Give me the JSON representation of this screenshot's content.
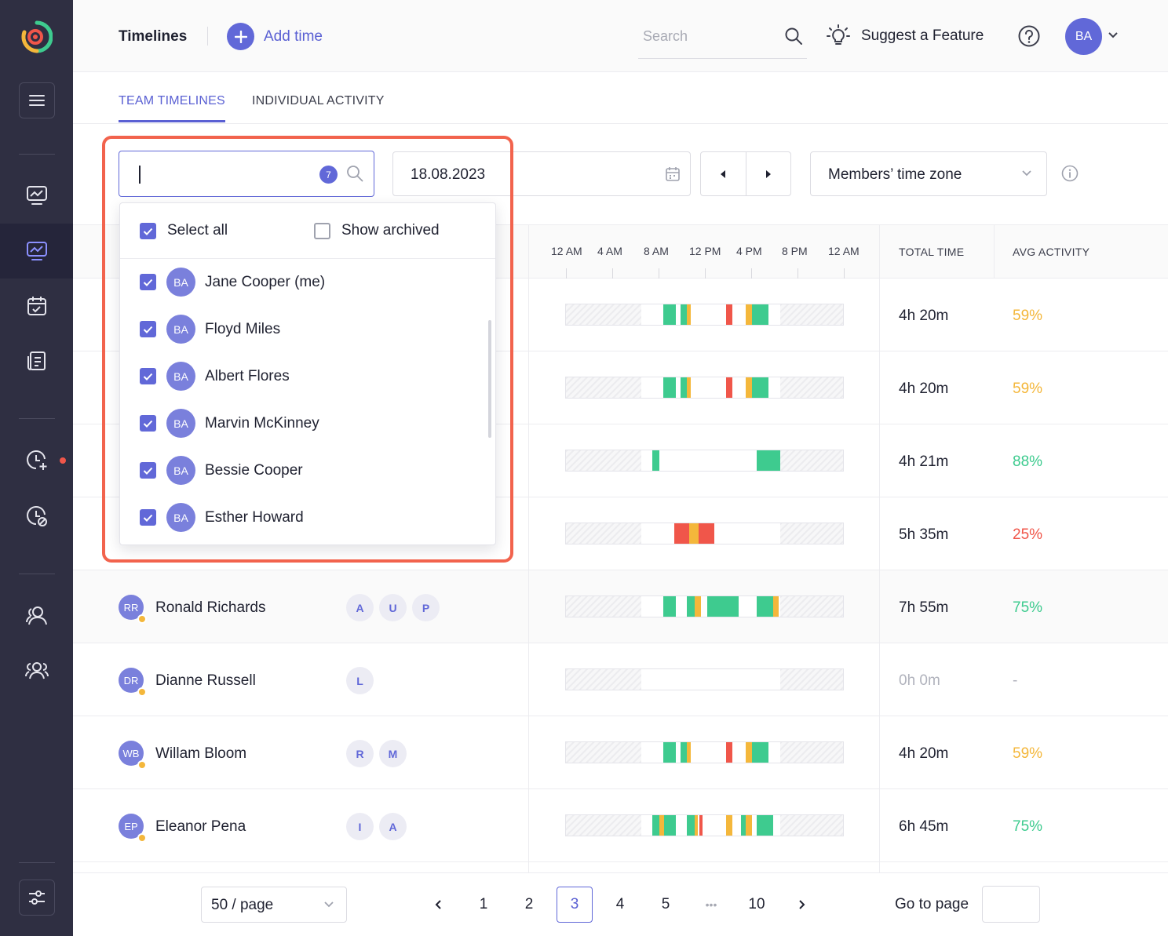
{
  "header": {
    "title": "Timelines",
    "add_time": "Add time",
    "search_placeholder": "Search",
    "suggest": "Suggest a Feature",
    "user_initials": "BA"
  },
  "tabs": [
    {
      "label": "TEAM TIMELINES",
      "active": true
    },
    {
      "label": "INDIVIDUAL ACTIVITY",
      "active": false
    }
  ],
  "filters": {
    "member_count": "7",
    "date": "18.08.2023",
    "timezone": "Members’ time zone"
  },
  "dropdown": {
    "select_all": "Select all",
    "show_archived": "Show archived",
    "members": [
      {
        "initials": "BA",
        "name": "Jane Cooper (me)",
        "checked": true
      },
      {
        "initials": "BA",
        "name": "Floyd Miles",
        "checked": true
      },
      {
        "initials": "BA",
        "name": "Albert Flores",
        "checked": true
      },
      {
        "initials": "BA",
        "name": "Marvin McKinney",
        "checked": true
      },
      {
        "initials": "BA",
        "name": "Bessie Cooper",
        "checked": true
      },
      {
        "initials": "BA",
        "name": "Esther Howard",
        "checked": true
      }
    ]
  },
  "table": {
    "hours": [
      "12 AM",
      "4 AM",
      "8 AM",
      "12 PM",
      "4 PM",
      "8 PM",
      "12 AM"
    ],
    "total_header": "TOTAL TIME",
    "activity_header": "AVG ACTIVITY",
    "rows": [
      {
        "initials": "",
        "name": "",
        "chips": [],
        "total": "4h 20m",
        "activity": "59%"
      },
      {
        "initials": "",
        "name": "",
        "chips": [],
        "total": "4h 20m",
        "activity": "59%"
      },
      {
        "initials": "",
        "name": "",
        "chips": [],
        "total": "4h 21m",
        "activity": "88%"
      },
      {
        "initials": "",
        "name": "",
        "chips": [],
        "total": "5h 35m",
        "activity": "25%"
      },
      {
        "initials": "RR",
        "name": "Ronald Richards",
        "chips": [
          "A",
          "U",
          "P"
        ],
        "total": "7h 55m",
        "activity": "75%"
      },
      {
        "initials": "DR",
        "name": "Dianne Russell",
        "chips": [
          "L"
        ],
        "total": "0h 0m",
        "activity": "-"
      },
      {
        "initials": "WB",
        "name": "Willam Bloom",
        "chips": [
          "R",
          "M"
        ],
        "total": "4h 20m",
        "activity": "59%"
      },
      {
        "initials": "EP",
        "name": "Eleanor Pena",
        "chips": [
          "I",
          "A"
        ],
        "total": "6h 45m",
        "activity": "75%"
      }
    ]
  },
  "pagination": {
    "page_size": "50 / page",
    "pages": [
      "1",
      "2",
      "3",
      "4",
      "5",
      "•••",
      "10"
    ],
    "current": "3",
    "goto": "Go to page"
  },
  "colors": {
    "accent": "#6168d8",
    "green": "#3ecb8f",
    "yellow": "#f4b73b",
    "red": "#f0564a",
    "sidebar": "#2f2f42",
    "highlight": "#f2634d"
  }
}
